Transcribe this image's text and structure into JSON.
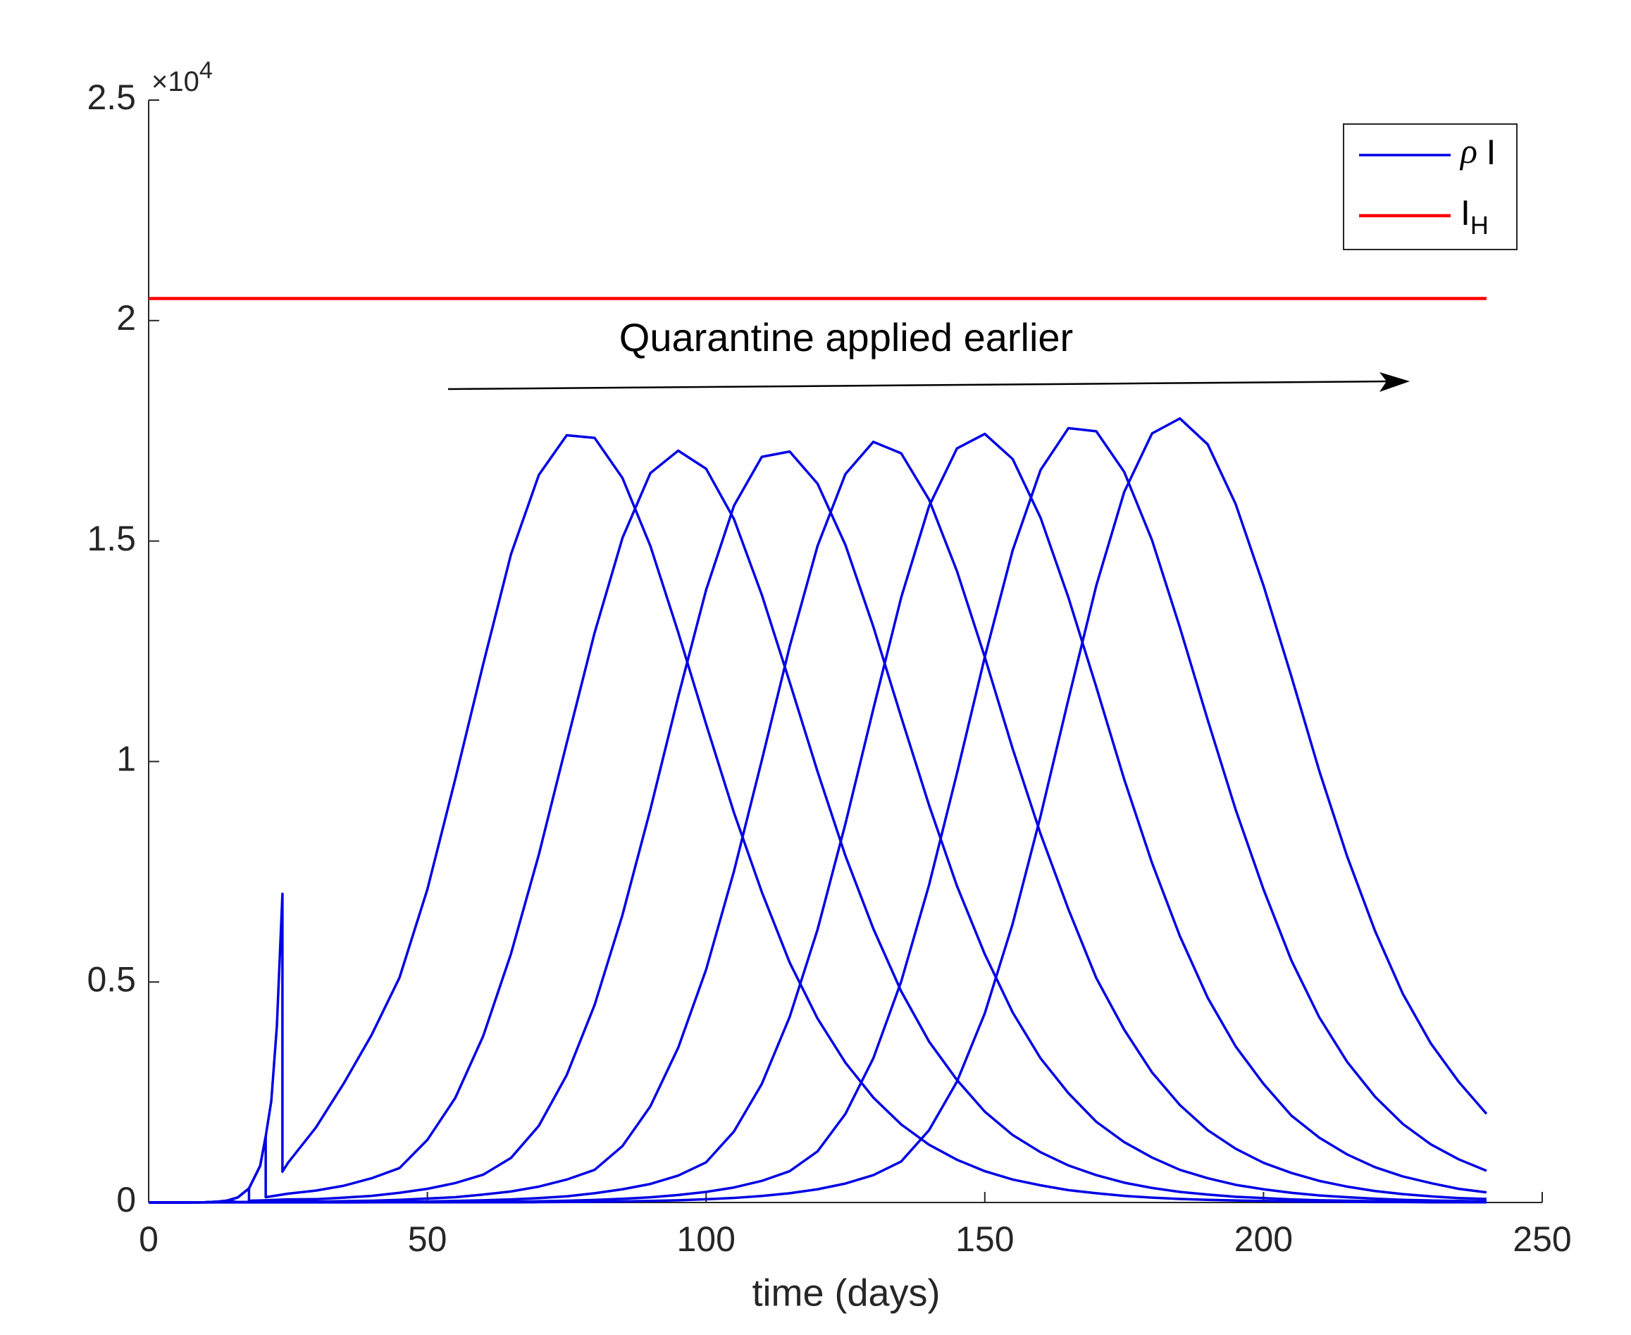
{
  "chart_data": {
    "type": "line",
    "xlabel": "time (days)",
    "y_multiplier": {
      "base": "×10",
      "exponent": "4"
    },
    "annotation": "Quarantine applied earlier",
    "legend_position": "upper right",
    "grid": false,
    "xlim": [
      0,
      250
    ],
    "ylim": [
      0,
      25000
    ],
    "xticks": [
      0,
      50,
      100,
      150,
      200,
      250
    ],
    "yticks": [
      0,
      {
        "value": 5000,
        "label": "0.5"
      },
      {
        "value": 10000,
        "label": "1"
      },
      {
        "value": 15000,
        "label": "1.5"
      },
      {
        "value": 20000,
        "label": "2"
      },
      {
        "value": 25000,
        "label": "2.5"
      }
    ],
    "x": [
      0,
      5,
      10,
      12,
      14,
      16,
      18,
      18,
      20,
      21,
      21,
      22,
      23,
      24,
      24,
      25,
      30,
      35,
      40,
      45,
      50,
      55,
      60,
      65,
      70,
      75,
      80,
      85,
      90,
      95,
      100,
      105,
      110,
      115,
      120,
      125,
      130,
      135,
      140,
      145,
      150,
      155,
      160,
      165,
      170,
      175,
      180,
      185,
      190,
      195,
      200,
      205,
      210,
      215,
      220,
      225,
      230,
      235,
      240
    ],
    "series": [
      {
        "name": "ρ I",
        "color": "#0000e6",
        "values": [
          0,
          0,
          5,
          15,
          40,
          115,
          320,
          320,
          830,
          1500,
          1500,
          2300,
          4000,
          7000,
          700,
          900,
          1700,
          2700,
          3800,
          5100,
          7100,
          9600,
          12200,
          14700,
          16500,
          17400,
          17340,
          16430,
          14890,
          12930,
          10850,
          8840,
          7040,
          5440,
          4170,
          3170,
          2380,
          1770,
          1310,
          970,
          710,
          520,
          390,
          280,
          210,
          150,
          110,
          80,
          60,
          45,
          35,
          25,
          20,
          15,
          10,
          10,
          5,
          5,
          5
        ]
      },
      {
        "color": "#0000e6",
        "values": [
          0,
          0,
          5,
          15,
          40,
          115,
          320,
          320,
          830,
          1500,
          120,
          140,
          160,
          180,
          180,
          200,
          270,
          380,
          550,
          780,
          1420,
          2370,
          3770,
          5640,
          7890,
          10420,
          12920,
          15070,
          16540,
          17050,
          16640,
          15500,
          13780,
          11800,
          9770,
          7860,
          6210,
          4790,
          3650,
          2780,
          2060,
          1530,
          1140,
          840,
          620,
          450,
          330,
          240,
          180,
          130,
          100,
          70,
          50,
          40,
          30,
          20,
          15,
          10,
          10
        ]
      },
      {
        "color": "#0000e6",
        "values": [
          0,
          0,
          5,
          15,
          40,
          115,
          320,
          40,
          45,
          50,
          50,
          55,
          60,
          65,
          65,
          70,
          75,
          110,
          150,
          220,
          310,
          440,
          630,
          1010,
          1740,
          2890,
          4480,
          6520,
          8910,
          11470,
          13890,
          15800,
          16910,
          17030,
          16300,
          14910,
          13060,
          11010,
          9010,
          7180,
          5630,
          4310,
          3270,
          2480,
          1830,
          1370,
          1020,
          740,
          550,
          400,
          300,
          220,
          160,
          120,
          85,
          60,
          45,
          35,
          25
        ]
      },
      {
        "color": "#0000e6",
        "values": [
          0,
          0,
          5,
          15,
          40,
          10,
          12,
          12,
          15,
          16,
          16,
          17,
          18,
          19,
          19,
          20,
          20,
          30,
          40,
          60,
          90,
          120,
          180,
          250,
          360,
          520,
          740,
          1280,
          2180,
          3510,
          5280,
          7510,
          10030,
          12610,
          14890,
          16520,
          17250,
          16990,
          15940,
          14320,
          12370,
          10290,
          8360,
          6650,
          5090,
          3920,
          2950,
          2210,
          1640,
          1220,
          900,
          670,
          490,
          360,
          260,
          190,
          140,
          100,
          80
        ]
      },
      {
        "color": "#0000e6",
        "values": [
          0,
          0,
          5,
          8,
          8,
          8,
          9,
          9,
          10,
          10,
          10,
          10,
          11,
          11,
          11,
          12,
          13,
          14,
          16,
          18,
          24,
          35,
          50,
          70,
          100,
          140,
          210,
          300,
          420,
          610,
          910,
          1610,
          2690,
          4210,
          6190,
          8590,
          11190,
          13720,
          15790,
          17100,
          17430,
          16860,
          15530,
          13720,
          11690,
          9600,
          7700,
          6040,
          4640,
          3540,
          2690,
          1970,
          1470,
          1090,
          800,
          590,
          440,
          310,
          230
        ]
      },
      {
        "color": "#0000e6",
        "values": [
          0,
          0,
          4,
          4,
          4,
          4,
          4,
          4,
          5,
          5,
          5,
          5,
          5,
          5,
          5,
          5,
          5,
          5,
          5,
          5,
          6,
          9,
          14,
          20,
          27,
          40,
          58,
          83,
          118,
          170,
          240,
          340,
          490,
          710,
          1160,
          2010,
          3270,
          5010,
          7200,
          9730,
          12370,
          14790,
          16610,
          17560,
          17490,
          16570,
          15020,
          13040,
          10940,
          8910,
          7100,
          5490,
          4200,
          3190,
          2400,
          1780,
          1320,
          980,
          720
        ]
      },
      {
        "color": "#0000e6",
        "values": [
          0,
          0,
          1,
          2,
          2,
          2,
          2,
          2,
          2,
          2,
          2,
          2,
          2,
          2,
          2,
          2,
          2,
          2,
          3,
          3,
          3,
          4,
          4,
          5,
          7,
          11,
          16,
          25,
          36,
          50,
          73,
          103,
          148,
          210,
          300,
          430,
          620,
          930,
          1640,
          2740,
          4290,
          6320,
          8760,
          11410,
          13990,
          16110,
          17440,
          17780,
          17190,
          15840,
          13990,
          11930,
          9790,
          7850,
          6160,
          4730,
          3610,
          2740,
          2010
        ]
      },
      {
        "name": "I_H",
        "color": "#ff0000",
        "x": [
          0,
          240
        ],
        "values": [
          20500,
          20500
        ]
      }
    ]
  }
}
